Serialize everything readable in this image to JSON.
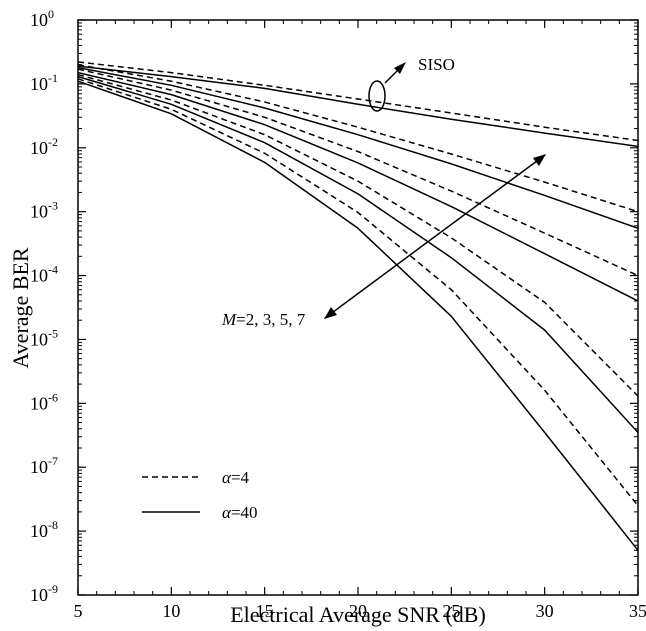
{
  "chart_data": {
    "type": "line",
    "title": "",
    "xlabel": "Electrical Average SNR (dB)",
    "ylabel": "Average BER",
    "xlim": [
      5,
      35
    ],
    "ylim_exponent": [
      -9,
      0
    ],
    "yscale": "log",
    "x_ticks": [
      "5",
      "10",
      "15",
      "20",
      "25",
      "30",
      "35"
    ],
    "y_ticks": [
      {
        "base": "10",
        "exp": "0"
      },
      {
        "base": "10",
        "exp": "-1"
      },
      {
        "base": "10",
        "exp": "-2"
      },
      {
        "base": "10",
        "exp": "-3"
      },
      {
        "base": "10",
        "exp": "-4"
      },
      {
        "base": "10",
        "exp": "-5"
      },
      {
        "base": "10",
        "exp": "-6"
      },
      {
        "base": "10",
        "exp": "-7"
      },
      {
        "base": "10",
        "exp": "-8"
      },
      {
        "base": "10",
        "exp": "-9"
      }
    ],
    "grid": false,
    "legend_position": "bottom-left",
    "legend": [
      {
        "label_symbol": "α",
        "label_value": "=4",
        "style": "dashed"
      },
      {
        "label_symbol": "α",
        "label_value": "=40",
        "style": "solid"
      }
    ],
    "annotations": {
      "siso": "SISO",
      "m_symbol": "M",
      "m_values": "=2, 3, 5, 7"
    },
    "x": [
      5,
      10,
      15,
      20,
      25,
      30,
      35
    ],
    "series": [
      {
        "style": "dashed",
        "values": [
          0.22,
          0.15,
          0.095,
          0.058,
          0.035,
          0.021,
          0.013
        ]
      },
      {
        "style": "solid",
        "values": [
          0.19,
          0.13,
          0.085,
          0.048,
          0.028,
          0.017,
          0.0105
        ]
      },
      {
        "style": "dashed",
        "values": [
          0.2,
          0.11,
          0.052,
          0.021,
          0.008,
          0.0029,
          0.001
        ]
      },
      {
        "style": "solid",
        "values": [
          0.18,
          0.095,
          0.042,
          0.016,
          0.0056,
          0.0018,
          0.00055
        ]
      },
      {
        "style": "dashed",
        "values": [
          0.17,
          0.08,
          0.03,
          0.0087,
          0.0021,
          0.00046,
          0.0001
        ]
      },
      {
        "style": "solid",
        "values": [
          0.15,
          0.068,
          0.023,
          0.0058,
          0.0012,
          0.00022,
          4e-05
        ]
      },
      {
        "style": "dashed",
        "values": [
          0.14,
          0.056,
          0.016,
          0.003,
          0.00039,
          3.8e-05,
          1.3e-06
        ]
      },
      {
        "style": "solid",
        "values": [
          0.13,
          0.048,
          0.012,
          0.0019,
          0.00019,
          1.4e-05,
          3.5e-07
        ]
      },
      {
        "style": "dashed",
        "values": [
          0.12,
          0.04,
          0.0082,
          0.00097,
          6e-05,
          1.6e-06,
          2.5e-08
        ]
      },
      {
        "style": "solid",
        "values": [
          0.11,
          0.034,
          0.0059,
          0.00055,
          2.3e-05,
          3.5e-07,
          5e-09
        ]
      }
    ]
  }
}
